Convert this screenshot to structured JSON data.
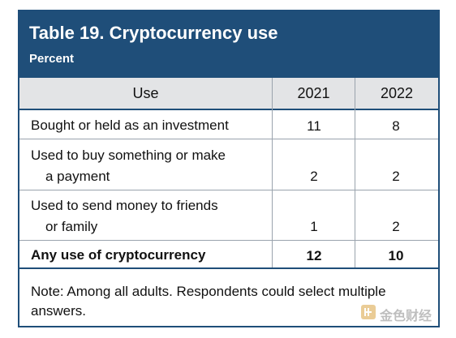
{
  "chart_data": {
    "type": "table",
    "title": "Table 19. Cryptocurrency use",
    "subtitle": "Percent",
    "columns": [
      "Use",
      "2021",
      "2022"
    ],
    "rows": [
      {
        "label_lines": [
          "Bought or held as an investment"
        ],
        "values": [
          "11",
          "8"
        ],
        "bold": false
      },
      {
        "label_lines": [
          "Used to buy something or make",
          "a payment"
        ],
        "values": [
          "2",
          "2"
        ],
        "bold": false
      },
      {
        "label_lines": [
          "Used to send money to friends",
          "or family"
        ],
        "values": [
          "1",
          "2"
        ],
        "bold": false
      },
      {
        "label_lines": [
          "Any use of cryptocurrency"
        ],
        "values": [
          "12",
          "10"
        ],
        "bold": true
      }
    ],
    "note": "Note: Among all adults. Respondents could select multiple answers."
  },
  "watermark": {
    "text": "金色财经",
    "icon": "jinse-logo-icon",
    "color": "#d9a441"
  },
  "colors": {
    "header_bg": "#1f4e79",
    "column_header_bg": "#e3e4e6"
  }
}
